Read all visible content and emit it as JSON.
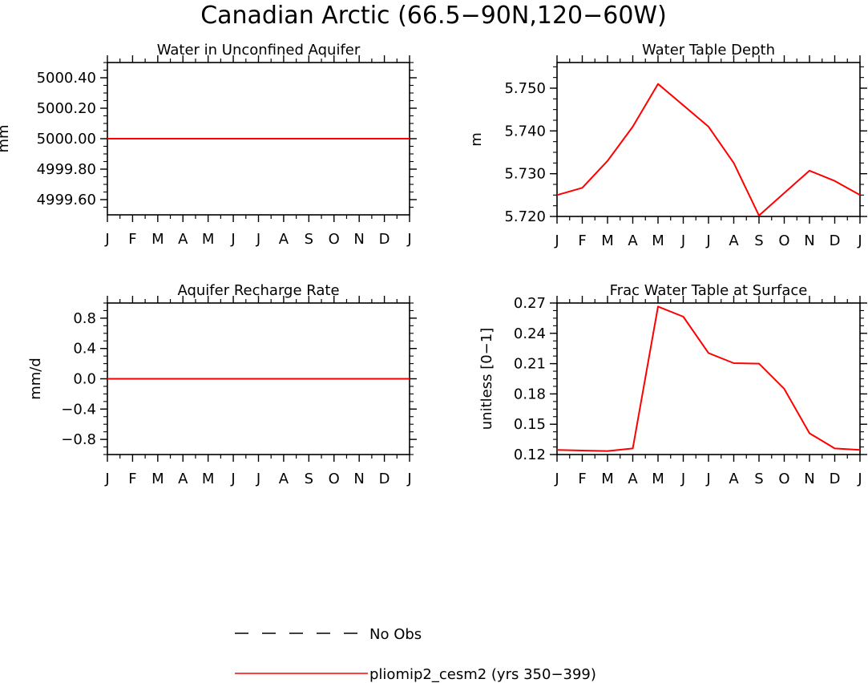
{
  "figure_title": "Canadian Arctic (66.5−90N,120−60W)",
  "colors": {
    "model_line": "#ff0000",
    "obs_line": "#000000",
    "axis": "#000000"
  },
  "legend": {
    "entries": [
      {
        "label": "No Obs",
        "style": "dashed",
        "color": "#000000"
      },
      {
        "label": "pliomip2_cesm2 (yrs 350−399)",
        "style": "solid",
        "color": "#ff0000"
      }
    ]
  },
  "chart_data": [
    {
      "type": "line",
      "title": "Water in Unconfined Aquifer",
      "xlabel": "",
      "ylabel": "mm",
      "categories": [
        "J",
        "F",
        "M",
        "A",
        "M",
        "J",
        "J",
        "A",
        "S",
        "O",
        "N",
        "D",
        "J"
      ],
      "ylim": [
        4999.5,
        5000.5
      ],
      "yticks": [
        4999.6,
        4999.8,
        5000.0,
        5000.2,
        5000.4
      ],
      "ytick_labels": [
        "4999.60",
        "4999.80",
        "5000.00",
        "5000.20",
        "5000.40"
      ],
      "series": [
        {
          "name": "pliomip2_cesm2 (yrs 350−399)",
          "values": [
            5000.0,
            5000.0,
            5000.0,
            5000.0,
            5000.0,
            5000.0,
            5000.0,
            5000.0,
            5000.0,
            5000.0,
            5000.0,
            5000.0,
            5000.0
          ]
        }
      ]
    },
    {
      "type": "line",
      "title": "Water Table Depth",
      "xlabel": "",
      "ylabel": "m",
      "categories": [
        "J",
        "F",
        "M",
        "A",
        "M",
        "J",
        "J",
        "A",
        "S",
        "O",
        "N",
        "D",
        "J"
      ],
      "ylim": [
        5.72,
        5.756
      ],
      "yticks": [
        5.72,
        5.73,
        5.74,
        5.75
      ],
      "ytick_labels": [
        "5.720",
        "5.730",
        "5.740",
        "5.750"
      ],
      "series": [
        {
          "name": "pliomip2_cesm2 (yrs 350−399)",
          "values": [
            5.725,
            5.7267,
            5.733,
            5.741,
            5.751,
            5.746,
            5.741,
            5.7325,
            5.7202,
            5.7255,
            5.7307,
            5.7283,
            5.725
          ]
        }
      ]
    },
    {
      "type": "line",
      "title": "Aquifer Recharge Rate",
      "xlabel": "",
      "ylabel": "mm/d",
      "categories": [
        "J",
        "F",
        "M",
        "A",
        "M",
        "J",
        "J",
        "A",
        "S",
        "O",
        "N",
        "D",
        "J"
      ],
      "ylim": [
        -1.0,
        1.0
      ],
      "yticks": [
        -0.8,
        -0.4,
        0.0,
        0.4,
        0.8
      ],
      "ytick_labels": [
        "−0.8",
        "−0.4",
        "0.0",
        "0.4",
        "0.8"
      ],
      "series": [
        {
          "name": "pliomip2_cesm2 (yrs 350−399)",
          "values": [
            0,
            0,
            0,
            0,
            0,
            0,
            0,
            0,
            0,
            0,
            0,
            0,
            0
          ]
        }
      ]
    },
    {
      "type": "line",
      "title": "Frac Water Table at Surface",
      "xlabel": "",
      "ylabel": "unitless [0−1]",
      "categories": [
        "J",
        "F",
        "M",
        "A",
        "M",
        "J",
        "J",
        "A",
        "S",
        "O",
        "N",
        "D",
        "J"
      ],
      "ylim": [
        0.12,
        0.27
      ],
      "yticks": [
        0.12,
        0.15,
        0.18,
        0.21,
        0.24,
        0.27
      ],
      "ytick_labels": [
        "0.12",
        "0.15",
        "0.18",
        "0.21",
        "0.24",
        "0.27"
      ],
      "series": [
        {
          "name": "pliomip2_cesm2 (yrs 350−399)",
          "values": [
            0.1245,
            0.124,
            0.1235,
            0.126,
            0.2665,
            0.2565,
            0.2205,
            0.2105,
            0.21,
            0.185,
            0.141,
            0.126,
            0.1245
          ]
        }
      ]
    }
  ]
}
